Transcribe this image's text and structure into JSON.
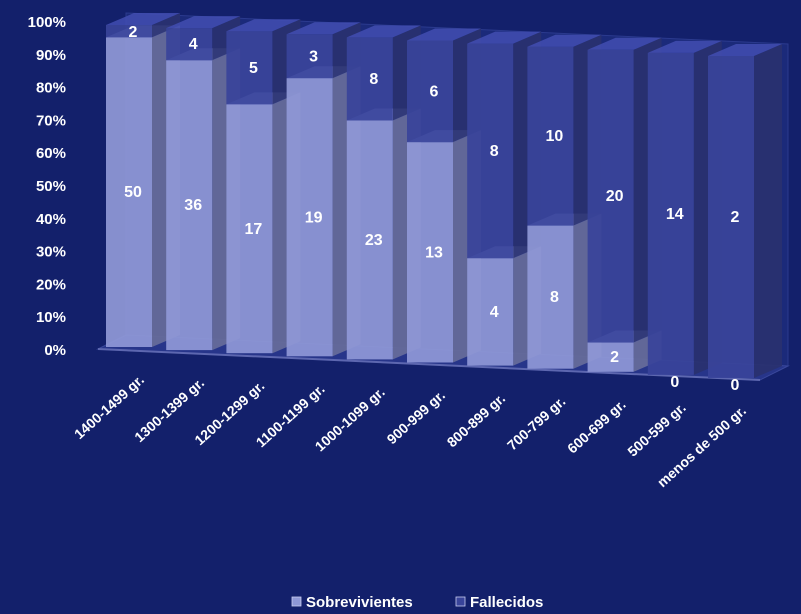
{
  "chart_data": {
    "type": "bar",
    "stacked": "percent",
    "projection": "3d",
    "categories": [
      "1400-1499 gr.",
      "1300-1399 gr.",
      "1200-1299 gr.",
      "1100-1199 gr.",
      "1000-1099 gr.",
      "900-999 gr.",
      "800-899 gr.",
      "700-799 gr.",
      "600-699 gr.",
      "500-599 gr.",
      "menos de 500 gr."
    ],
    "series": [
      {
        "name": "Sobrevivientes",
        "values": [
          50,
          36,
          17,
          19,
          23,
          13,
          4,
          8,
          2,
          0,
          0
        ],
        "color": "#8f98d6"
      },
      {
        "name": "Fallecidos",
        "values": [
          2,
          4,
          5,
          3,
          8,
          6,
          8,
          10,
          20,
          14,
          2
        ],
        "color": "#39449a"
      }
    ],
    "yticks": [
      "0%",
      "10%",
      "20%",
      "30%",
      "40%",
      "50%",
      "60%",
      "70%",
      "80%",
      "90%",
      "100%"
    ],
    "ylim": [
      0,
      100
    ],
    "legend_position": "bottom",
    "grid": false,
    "background": "#13206b"
  }
}
